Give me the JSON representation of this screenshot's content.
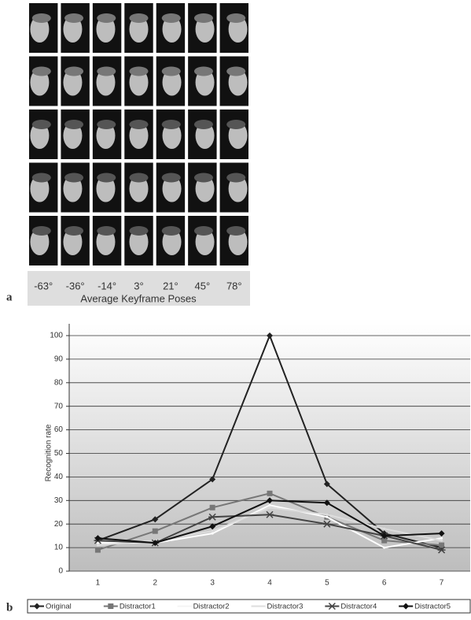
{
  "panel_a": {
    "label": "a",
    "poses": [
      "-63°",
      "-36°",
      "-14°",
      "3°",
      "21°",
      "45°",
      "78°"
    ],
    "caption": "Average Keyframe Poses"
  },
  "chart_data": {
    "type": "line",
    "panel_label": "b",
    "y_label": "Recognition rate",
    "categories": [
      "1",
      "2",
      "3",
      "4",
      "5",
      "6",
      "7"
    ],
    "ylim": [
      0,
      100
    ],
    "yticks": [
      0,
      10,
      20,
      30,
      40,
      50,
      60,
      70,
      80,
      90,
      100
    ],
    "grid": true,
    "series": [
      {
        "name": "Original",
        "color": "#222222",
        "marker": "diamond",
        "values": [
          13,
          22,
          39,
          100,
          37,
          16,
          10
        ]
      },
      {
        "name": "Distractor1",
        "color": "#777777",
        "marker": "square",
        "values": [
          9,
          17,
          27,
          33,
          23,
          13,
          11
        ]
      },
      {
        "name": "Distractor2",
        "color": "#ffffff",
        "marker": "none",
        "values": [
          12,
          12,
          16,
          28,
          23,
          10,
          14
        ]
      },
      {
        "name": "Distractor3",
        "color": "#dddddd",
        "marker": "none",
        "values": [
          11,
          13,
          17,
          27,
          24,
          18,
          13
        ]
      },
      {
        "name": "Distractor4",
        "color": "#444444",
        "marker": "star",
        "values": [
          13,
          12,
          23,
          24,
          20,
          15,
          9
        ]
      },
      {
        "name": "Distractor5",
        "color": "#111111",
        "marker": "diamond",
        "values": [
          14,
          12,
          19,
          30,
          29,
          15,
          16
        ]
      }
    ]
  }
}
